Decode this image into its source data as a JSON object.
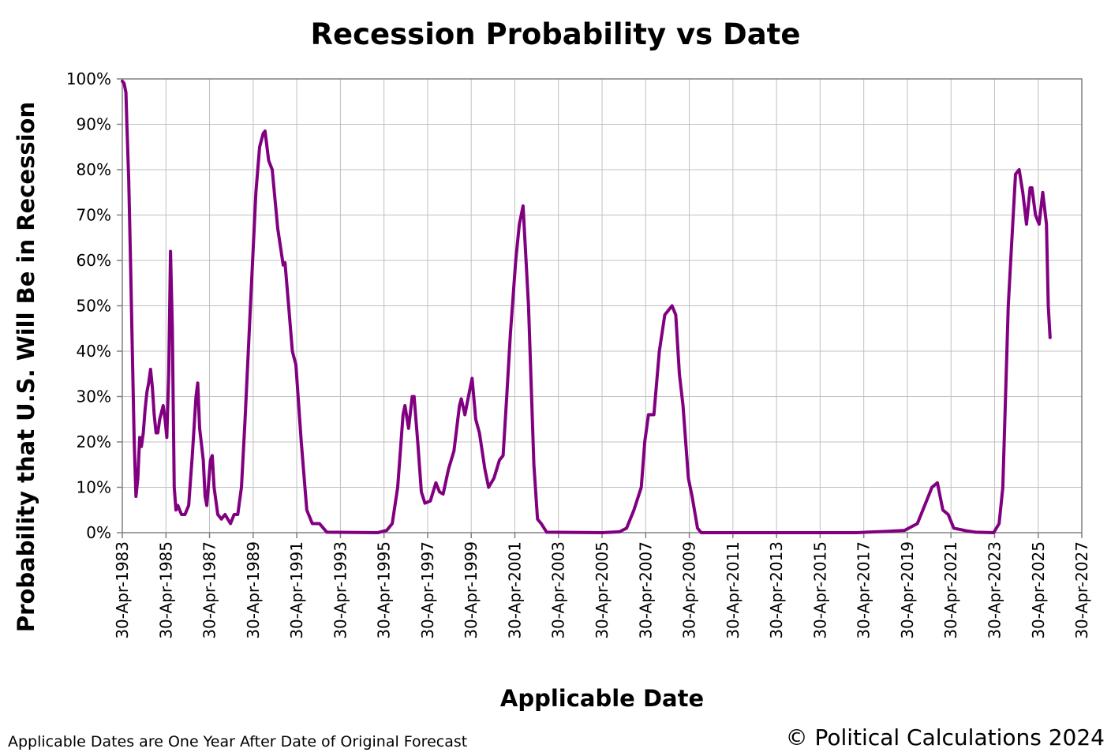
{
  "chart_data": {
    "type": "line",
    "title": "Recession Probability vs Date",
    "xlabel": "Applicable Date",
    "ylabel": "Probability that U.S. Will Be in Recession",
    "xlim": [
      "1983-04-30",
      "2027-04-30"
    ],
    "ylim": [
      0,
      1
    ],
    "y_ticks": [
      "0%",
      "10%",
      "20%",
      "30%",
      "40%",
      "50%",
      "60%",
      "70%",
      "80%",
      "90%",
      "100%"
    ],
    "x_ticks": [
      "30-Apr-1983",
      "30-Apr-1985",
      "30-Apr-1987",
      "30-Apr-1989",
      "30-Apr-1991",
      "30-Apr-1993",
      "30-Apr-1995",
      "30-Apr-1997",
      "30-Apr-1999",
      "30-Apr-2001",
      "30-Apr-2003",
      "30-Apr-2005",
      "30-Apr-2007",
      "30-Apr-2009",
      "30-Apr-2011",
      "30-Apr-2013",
      "30-Apr-2015",
      "30-Apr-2017",
      "30-Apr-2019",
      "30-Apr-2021",
      "30-Apr-2023",
      "30-Apr-2025",
      "30-Apr-2027"
    ],
    "grid": true,
    "series": [
      {
        "name": "",
        "color": "#800080",
        "points": [
          [
            "1983-04-30",
            0.995
          ],
          [
            "1983-05-31",
            0.99
          ],
          [
            "1983-06-30",
            0.97
          ],
          [
            "1983-07-15",
            0.9
          ],
          [
            "1983-08-15",
            0.78
          ],
          [
            "1983-09-15",
            0.6
          ],
          [
            "1983-10-15",
            0.4
          ],
          [
            "1983-11-15",
            0.2
          ],
          [
            "1983-12-15",
            0.08
          ],
          [
            "1984-01-15",
            0.12
          ],
          [
            "1984-02-15",
            0.21
          ],
          [
            "1984-03-15",
            0.19
          ],
          [
            "1984-04-15",
            0.22
          ],
          [
            "1984-05-15",
            0.27
          ],
          [
            "1984-06-15",
            0.31
          ],
          [
            "1984-07-15",
            0.33
          ],
          [
            "1984-08-15",
            0.36
          ],
          [
            "1984-09-15",
            0.32
          ],
          [
            "1984-10-15",
            0.26
          ],
          [
            "1984-11-15",
            0.22
          ],
          [
            "1984-12-15",
            0.22
          ],
          [
            "1985-01-15",
            0.25
          ],
          [
            "1985-03-15",
            0.28
          ],
          [
            "1985-04-15",
            0.25
          ],
          [
            "1985-05-15",
            0.21
          ],
          [
            "1985-06-15",
            0.35
          ],
          [
            "1985-07-15",
            0.62
          ],
          [
            "1985-08-15",
            0.45
          ],
          [
            "1985-09-15",
            0.1
          ],
          [
            "1985-10-15",
            0.05
          ],
          [
            "1985-11-15",
            0.06
          ],
          [
            "1986-01-15",
            0.04
          ],
          [
            "1986-03-15",
            0.04
          ],
          [
            "1986-05-15",
            0.06
          ],
          [
            "1986-07-15",
            0.17
          ],
          [
            "1986-09-15",
            0.3
          ],
          [
            "1986-10-15",
            0.33
          ],
          [
            "1986-11-15",
            0.23
          ],
          [
            "1987-01-15",
            0.16
          ],
          [
            "1987-02-15",
            0.08
          ],
          [
            "1987-03-15",
            0.06
          ],
          [
            "1987-05-15",
            0.16
          ],
          [
            "1987-06-15",
            0.17
          ],
          [
            "1987-07-15",
            0.1
          ],
          [
            "1987-09-15",
            0.04
          ],
          [
            "1987-11-15",
            0.03
          ],
          [
            "1988-01-15",
            0.04
          ],
          [
            "1988-04-15",
            0.02
          ],
          [
            "1988-06-15",
            0.04
          ],
          [
            "1988-08-15",
            0.04
          ],
          [
            "1988-10-15",
            0.1
          ],
          [
            "1988-12-15",
            0.25
          ],
          [
            "1989-03-15",
            0.5
          ],
          [
            "1989-06-15",
            0.75
          ],
          [
            "1989-08-15",
            0.85
          ],
          [
            "1989-10-15",
            0.88
          ],
          [
            "1989-11-15",
            0.885
          ],
          [
            "1990-01-15",
            0.82
          ],
          [
            "1990-03-15",
            0.8
          ],
          [
            "1990-06-15",
            0.67
          ],
          [
            "1990-09-15",
            0.59
          ],
          [
            "1990-10-15",
            0.595
          ],
          [
            "1990-12-15",
            0.5
          ],
          [
            "1991-02-15",
            0.4
          ],
          [
            "1991-04-15",
            0.37
          ],
          [
            "1991-07-15",
            0.2
          ],
          [
            "1991-10-15",
            0.05
          ],
          [
            "1992-01-15",
            0.02
          ],
          [
            "1992-05-15",
            0.02
          ],
          [
            "1992-09-15",
            0.001
          ],
          [
            "1995-01-15",
            0.0
          ],
          [
            "1995-06-15",
            0.005
          ],
          [
            "1995-09-15",
            0.02
          ],
          [
            "1995-12-15",
            0.1
          ],
          [
            "1996-03-15",
            0.26
          ],
          [
            "1996-04-15",
            0.28
          ],
          [
            "1996-06-15",
            0.23
          ],
          [
            "1996-08-15",
            0.3
          ],
          [
            "1996-09-15",
            0.3
          ],
          [
            "1996-11-15",
            0.2
          ],
          [
            "1997-01-15",
            0.09
          ],
          [
            "1997-03-15",
            0.065
          ],
          [
            "1997-06-15",
            0.07
          ],
          [
            "1997-09-15",
            0.11
          ],
          [
            "1997-11-15",
            0.09
          ],
          [
            "1998-01-15",
            0.085
          ],
          [
            "1998-04-15",
            0.14
          ],
          [
            "1998-07-15",
            0.18
          ],
          [
            "1998-10-15",
            0.28
          ],
          [
            "1998-11-15",
            0.295
          ],
          [
            "1999-01-15",
            0.26
          ],
          [
            "1999-03-15",
            0.3
          ],
          [
            "1999-05-15",
            0.34
          ],
          [
            "1999-07-15",
            0.25
          ],
          [
            "1999-09-15",
            0.22
          ],
          [
            "1999-12-15",
            0.14
          ],
          [
            "2000-02-15",
            0.1
          ],
          [
            "2000-05-15",
            0.12
          ],
          [
            "2000-08-15",
            0.16
          ],
          [
            "2000-10-15",
            0.17
          ],
          [
            "2000-12-15",
            0.3
          ],
          [
            "2001-02-15",
            0.44
          ],
          [
            "2001-05-15",
            0.6
          ],
          [
            "2001-07-15",
            0.68
          ],
          [
            "2001-09-15",
            0.72
          ],
          [
            "2001-12-15",
            0.5
          ],
          [
            "2002-03-15",
            0.15
          ],
          [
            "2002-05-15",
            0.03
          ],
          [
            "2002-07-15",
            0.02
          ],
          [
            "2002-10-15",
            0.001
          ],
          [
            "2005-04-30",
            0.0
          ],
          [
            "2006-02-15",
            0.002
          ],
          [
            "2006-06-15",
            0.01
          ],
          [
            "2006-10-15",
            0.05
          ],
          [
            "2007-02-15",
            0.1
          ],
          [
            "2007-04-15",
            0.2
          ],
          [
            "2007-06-15",
            0.26
          ],
          [
            "2007-09-15",
            0.26
          ],
          [
            "2007-12-15",
            0.4
          ],
          [
            "2008-03-15",
            0.48
          ],
          [
            "2008-05-15",
            0.49
          ],
          [
            "2008-07-15",
            0.5
          ],
          [
            "2008-09-15",
            0.48
          ],
          [
            "2008-11-15",
            0.35
          ],
          [
            "2009-01-15",
            0.28
          ],
          [
            "2009-04-15",
            0.12
          ],
          [
            "2009-06-15",
            0.08
          ],
          [
            "2009-09-15",
            0.01
          ],
          [
            "2009-11-15",
            0.0
          ],
          [
            "2017-01-15",
            0.0
          ],
          [
            "2017-06-15",
            0.001
          ],
          [
            "2018-06-15",
            0.003
          ],
          [
            "2019-03-15",
            0.005
          ],
          [
            "2019-10-15",
            0.02
          ],
          [
            "2020-02-15",
            0.06
          ],
          [
            "2020-06-15",
            0.1
          ],
          [
            "2020-09-15",
            0.11
          ],
          [
            "2020-12-15",
            0.05
          ],
          [
            "2021-03-15",
            0.04
          ],
          [
            "2021-06-15",
            0.01
          ],
          [
            "2022-01-15",
            0.004
          ],
          [
            "2022-06-15",
            0.001
          ],
          [
            "2023-04-15",
            0.0
          ],
          [
            "2023-07-15",
            0.02
          ],
          [
            "2023-09-15",
            0.1
          ],
          [
            "2023-12-15",
            0.5
          ],
          [
            "2024-02-15",
            0.65
          ],
          [
            "2024-04-15",
            0.79
          ],
          [
            "2024-06-15",
            0.8
          ],
          [
            "2024-08-15",
            0.75
          ],
          [
            "2024-10-15",
            0.68
          ],
          [
            "2024-12-15",
            0.76
          ],
          [
            "2025-01-15",
            0.76
          ],
          [
            "2025-03-15",
            0.7
          ],
          [
            "2025-05-15",
            0.68
          ],
          [
            "2025-07-15",
            0.75
          ],
          [
            "2025-09-15",
            0.68
          ],
          [
            "2025-10-15",
            0.5
          ],
          [
            "2025-11-15",
            0.43
          ]
        ]
      }
    ]
  },
  "footnote": "Applicable Dates are One Year After Date of Original Forecast",
  "copyright": "© Political Calculations 2024"
}
